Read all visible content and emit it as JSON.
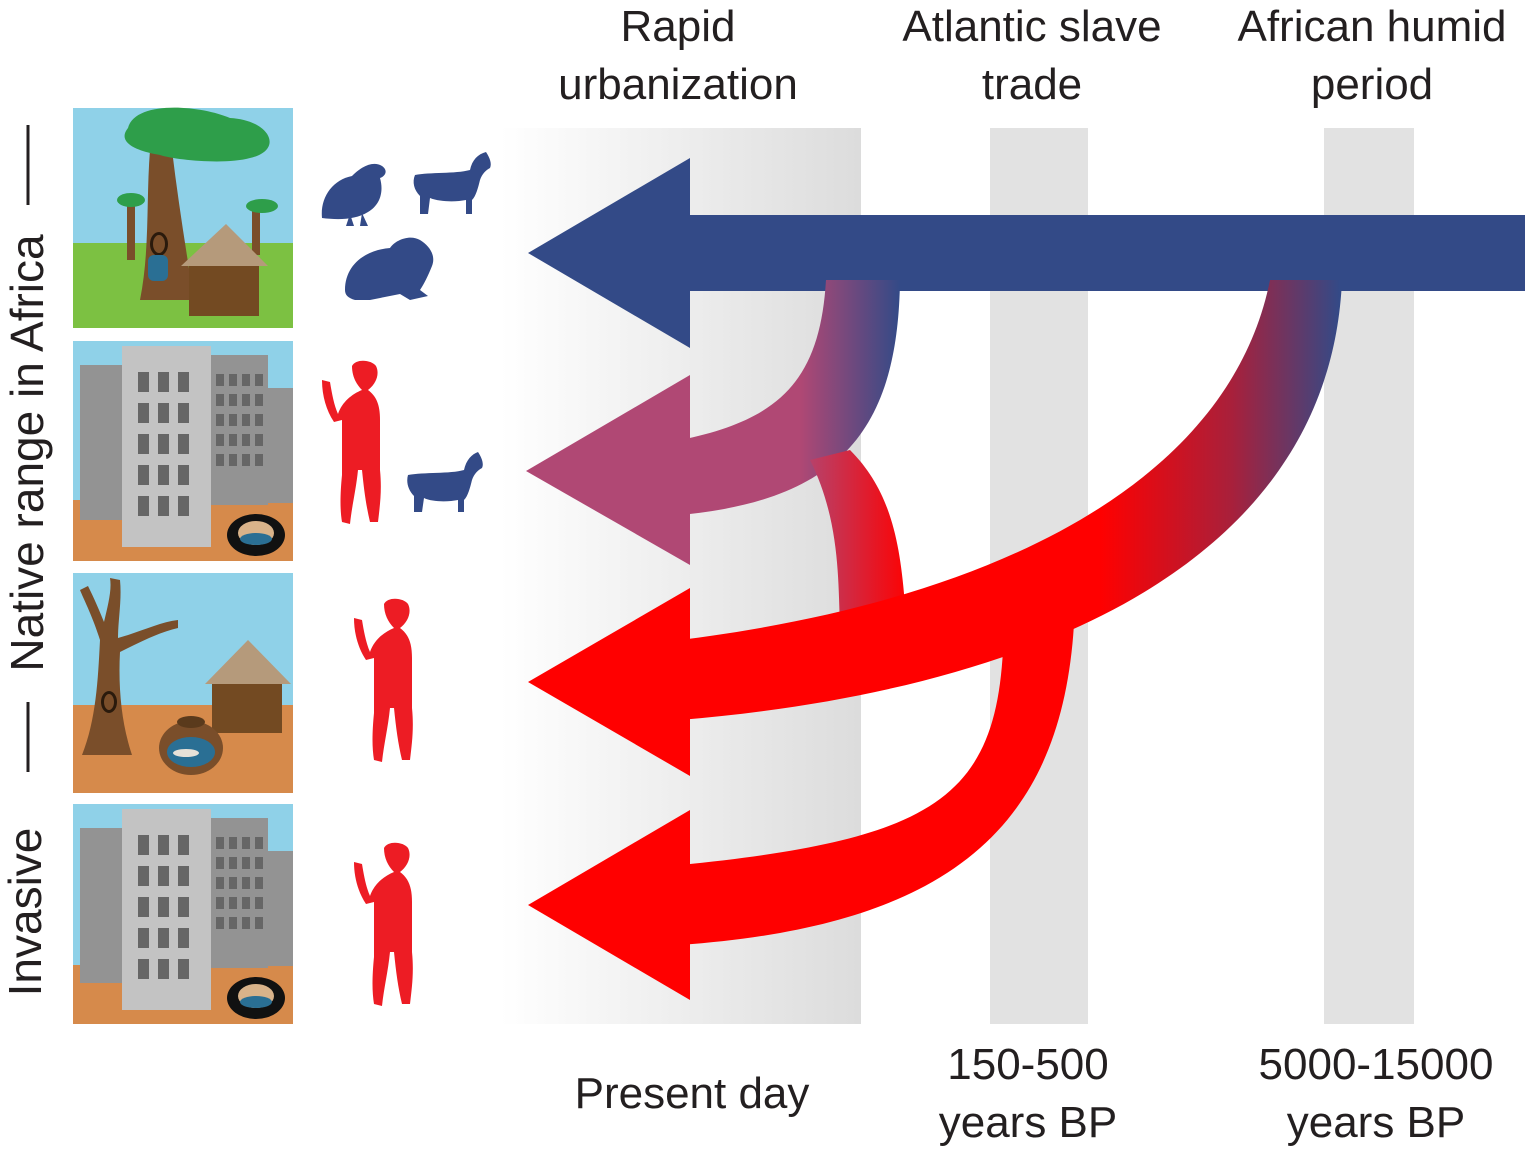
{
  "periods": [
    {
      "id": "rapid-urbanization",
      "label": "Rapid\nurbanization",
      "time_label": "Present day"
    },
    {
      "id": "atlantic-slave-trade",
      "label": "Atlantic slave\ntrade",
      "time_label": "150-500\nyears BP"
    },
    {
      "id": "african-humid-period",
      "label": "African humid\nperiod",
      "time_label": "5000-15000\nyears BP"
    }
  ],
  "side_labels": {
    "native": "Native range in Africa",
    "invasive": "Invasive"
  },
  "rows": [
    {
      "id": "native-forest",
      "scene": "tree-with-water-hole-and-hut",
      "hosts": [
        "bird-icon",
        "goat-icon",
        "rodent-icon"
      ],
      "host_color": "blue"
    },
    {
      "id": "native-urban",
      "scene": "city-with-tire",
      "hosts": [
        "human-icon",
        "goat-icon"
      ],
      "host_color": "mixed"
    },
    {
      "id": "native-dry",
      "scene": "dead-tree-with-water-pot-and-hut",
      "hosts": [
        "human-icon"
      ],
      "host_color": "red"
    },
    {
      "id": "invasive-urban",
      "scene": "city-with-tire",
      "hosts": [
        "human-icon"
      ],
      "host_color": "red"
    }
  ],
  "colors": {
    "blue": "#334a87",
    "red": "#ff0000",
    "human": "#ed1c24",
    "purple": "#b04874",
    "band": "#e2e2e2",
    "sky": "#8fd1e8",
    "grass": "#7cc142",
    "soil": "#d68a4b",
    "trunk": "#7a4e2a",
    "canopy": "#2e9e4a",
    "hut_roof": "#b59a7b",
    "hut_wall": "#734a22",
    "building_light": "#c3c3c3",
    "building_dark": "#939393",
    "window": "#666666",
    "water": "#2a6f94"
  }
}
